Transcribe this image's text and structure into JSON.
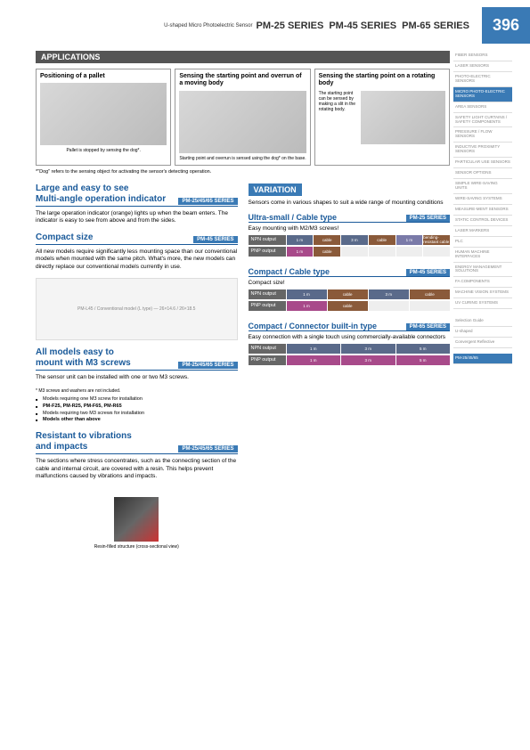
{
  "header": {
    "product": "U-shaped Micro Photoelectric Sensor",
    "series": [
      "PM-25 SERIES",
      "PM-45 SERIES",
      "PM-65 SERIES"
    ],
    "page": "396"
  },
  "applications": {
    "header": "APPLICATIONS",
    "items": [
      {
        "title": "Positioning of a pallet",
        "caption": "Pallet is stopped by sensing the dog*."
      },
      {
        "title": "Sensing the starting point and overrun of a moving body",
        "caption": "Starting point and overrun is sensed using the dog* on the base."
      },
      {
        "title": "Sensing the starting point on a rotating body",
        "desc": "The starting point can be sensed by making a slit in the rotating body."
      }
    ],
    "footnote": "*\"Dog\" refers to the sensing object for activating the sensor's detecting operation."
  },
  "features": [
    {
      "title1": "Large and easy to see",
      "title2": "Multi-angle operation indicator",
      "badge": "PM-25/45/65 SERIES",
      "text": "The large operation indicator (orange) lights up when the beam enters. The indicator is easy to see from above and from the sides."
    },
    {
      "title1": "Compact size",
      "badge": "PM-45 SERIES",
      "text": "All new models require significantly less mounting space than our conventional models when mounted with the same pitch. What's more, the new models can directly replace our conventional models currently in use."
    },
    {
      "title1": "All models easy to",
      "title2": "mount with M3 screws",
      "badge": "PM-25/45/65 SERIES",
      "text": "The sensor unit can be installed with one or two M3 screws.",
      "note": "* M3 screws and washers are not included.",
      "bullets": [
        "Models requiring one M3 screw for installation",
        "PM-F25, PM-R25, PM-F65, PM-R65",
        "Models requiring two M3 screws for installation",
        "Models other than above"
      ]
    },
    {
      "title1": "Resistant to vibrations",
      "title2": "and impacts",
      "badge": "PM-25/45/65 SERIES",
      "text": "The sections where stress concentrates, such as the connecting section of the cable and internal circuit, are covered with a resin. This helps prevent malfunctions caused by vibrations and impacts.",
      "img_caption": "Resin-filled structure (cross-sectional view)"
    }
  ],
  "variation": {
    "header": "VARIATION",
    "intro": "Sensors come in various shapes to suit a wide range of mounting conditions",
    "groups": [
      {
        "title": "Ultra-small / Cable type",
        "badge": "PM-25 SERIES",
        "sub": "Easy mounting with M2/M3 screws!",
        "outputs": [
          {
            "label": "NPN output",
            "cells": [
              {
                "t": "1 m",
                "c": "#5a6a8a"
              },
              {
                "t": "cable",
                "c": "#8a5a3a"
              },
              {
                "t": "3 m",
                "c": "#5a6a8a"
              },
              {
                "t": "cable",
                "c": "#8a5a3a"
              },
              {
                "t": "1 m",
                "c": "#7a7aa8"
              },
              {
                "t": "bending-resistant cable",
                "c": "#8a5a3a"
              }
            ]
          },
          {
            "label": "PNP output",
            "cells": [
              {
                "t": "1 m",
                "c": "#a84a8a"
              },
              {
                "t": "cable",
                "c": "#8a5a3a"
              },
              {
                "t": "",
                "c": "#eee"
              },
              {
                "t": "",
                "c": "#eee"
              },
              {
                "t": "",
                "c": "#eee"
              },
              {
                "t": "",
                "c": "#eee"
              }
            ]
          }
        ]
      },
      {
        "title": "Compact / Cable type",
        "badge": "PM-45 SERIES",
        "sub": "Compact size!",
        "outputs": [
          {
            "label": "NPN output",
            "cells": [
              {
                "t": "1 m",
                "c": "#5a6a8a"
              },
              {
                "t": "cable",
                "c": "#8a5a3a"
              },
              {
                "t": "3 m",
                "c": "#5a6a8a"
              },
              {
                "t": "cable",
                "c": "#8a5a3a"
              }
            ]
          },
          {
            "label": "PNP output",
            "cells": [
              {
                "t": "1 m",
                "c": "#a84a8a"
              },
              {
                "t": "cable",
                "c": "#8a5a3a"
              },
              {
                "t": "",
                "c": "#eee"
              },
              {
                "t": "",
                "c": "#eee"
              }
            ]
          }
        ]
      },
      {
        "title": "Compact / Connector built-in type",
        "badge": "PM-65 SERIES",
        "sub": "Easy connection with a single touch using commercially-available connectors",
        "outputs": [
          {
            "label": "NPN output",
            "cells": [
              {
                "t": "1 m",
                "c": "#5a6a8a"
              },
              {
                "t": "3 m",
                "c": "#5a6a8a"
              },
              {
                "t": "5 m",
                "c": "#5a6a8a"
              }
            ]
          },
          {
            "label": "PNP output",
            "cells": [
              {
                "t": "1 m",
                "c": "#a84a8a"
              },
              {
                "t": "3 m",
                "c": "#a84a8a"
              },
              {
                "t": "5 m",
                "c": "#a84a8a"
              }
            ]
          }
        ]
      }
    ]
  },
  "sidebar": {
    "items": [
      "FIBER SENSORS",
      "LASER SENSORS",
      "PHOTO-ELECTRIC SENSORS",
      "MICRO PHOTO-ELECTRIC SENSORS",
      "AREA SENSORS",
      "SAFETY LIGHT CURTAINS / SAFETY COMPONENTS",
      "PRESSURE / FLOW SENSORS",
      "INDUCTIVE PROXIMITY SENSORS",
      "PARTICULAR USE SENSORS",
      "SENSOR OPTIONS",
      "SIMPLE WIRE-SAVING UNITS",
      "WIRE-SAVING SYSTEMS",
      "MEASURE-MENT SENSORS",
      "STATIC CONTROL DEVICES",
      "LASER MARKERS",
      "PLC",
      "HUMAN MACHINE INTERFACES",
      "ENERGY MANAGEMENT SOLUTIONS",
      "FA COMPONENTS",
      "MACHINE VISION SYSTEMS",
      "UV CURING SYSTEMS"
    ],
    "active_index": 3,
    "bottom": [
      "Selection Guide",
      "U-shaped",
      "Convergent Reflective"
    ],
    "highlight": "PM-25/45/65"
  }
}
